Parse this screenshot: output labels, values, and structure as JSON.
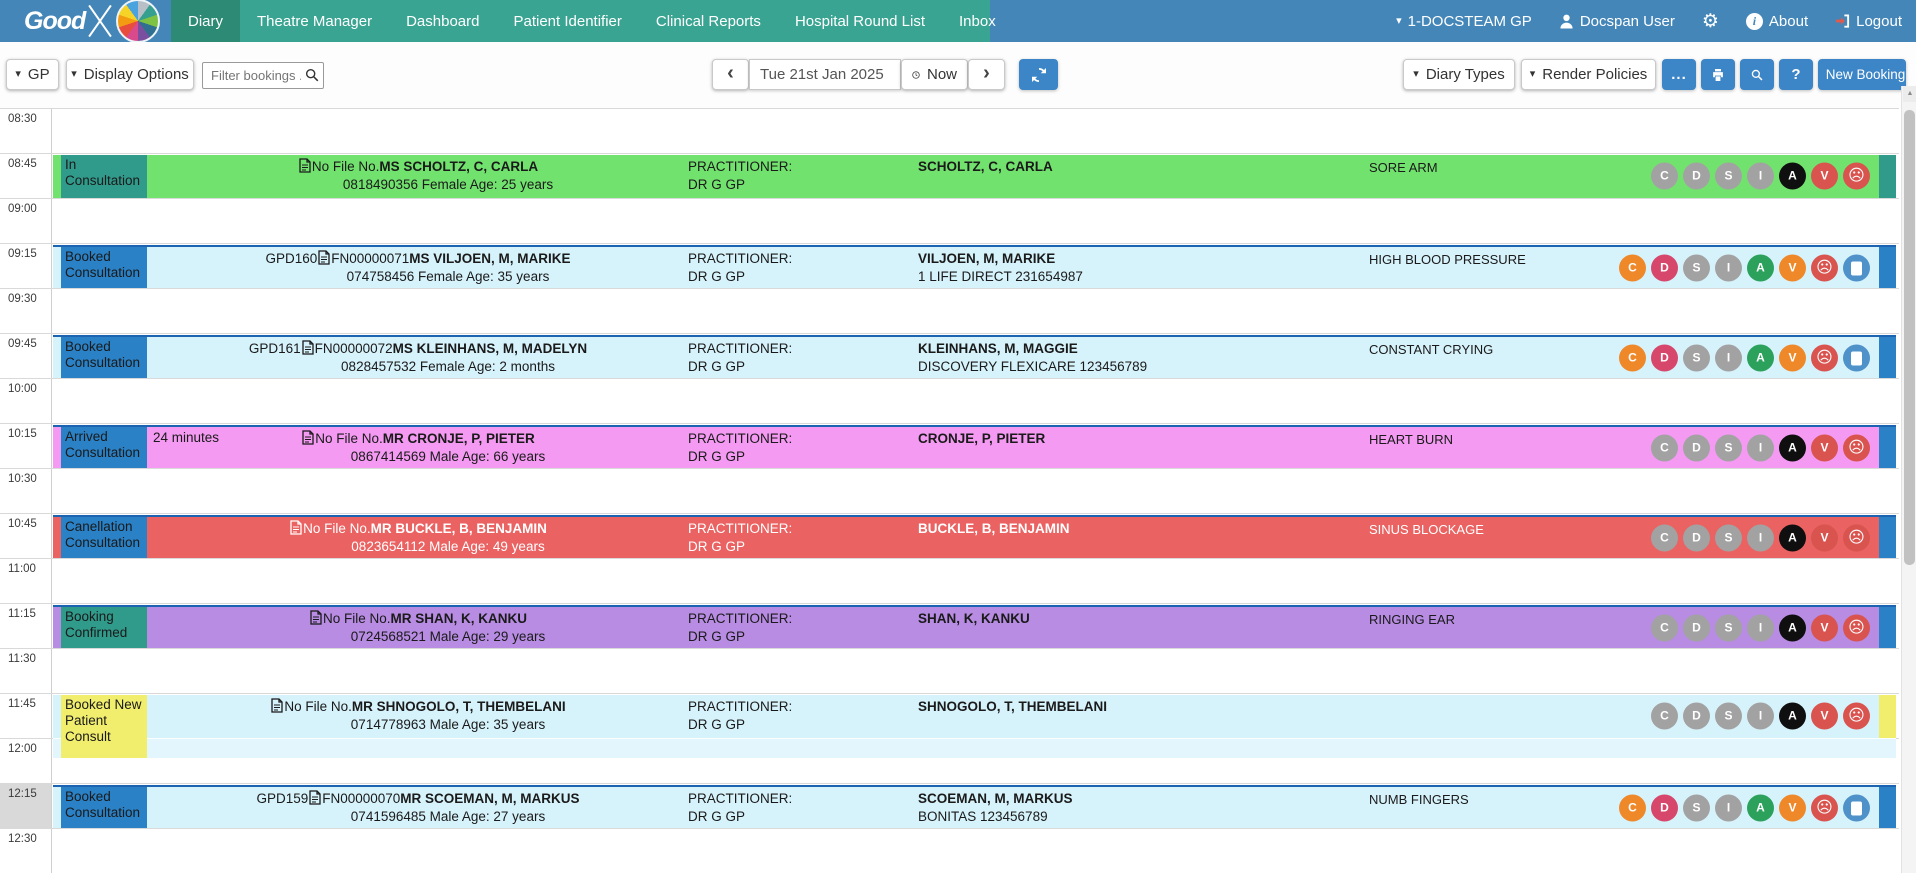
{
  "navbar": {
    "logo_text": "Good",
    "items": [
      {
        "label": "Diary",
        "active": true
      },
      {
        "label": "Theatre Manager",
        "active": false
      },
      {
        "label": "Dashboard",
        "active": false
      },
      {
        "label": "Patient Identifier",
        "active": false
      },
      {
        "label": "Clinical Reports",
        "active": false
      },
      {
        "label": "Hospital Round List",
        "active": false
      },
      {
        "label": "Inbox",
        "active": false
      }
    ],
    "practice": "1-DOCSTEAM GP",
    "user": "Docspan User",
    "about_label": "About",
    "logout_label": "Logout",
    "colors": {
      "bar_blue": "#4486b8",
      "menu_teal": "#3aa492",
      "active_teal": "#2d8a74"
    }
  },
  "toolbar": {
    "gp_label": "GP",
    "display_options_label": "Display Options",
    "filter_placeholder": "Filter bookings ...",
    "date_value": "Tue 21st Jan 2025",
    "now_label": "Now",
    "diary_types_label": "Diary Types",
    "render_policies_label": "Render Policies",
    "more_label": "...",
    "new_booking_label": "New Booking",
    "button_blue": "#3c85c6"
  },
  "diary": {
    "time_slots": [
      {
        "label": "08:30",
        "highlighted": false
      },
      {
        "label": "08:45",
        "highlighted": false
      },
      {
        "label": "09:00",
        "highlighted": false
      },
      {
        "label": "09:15",
        "highlighted": false
      },
      {
        "label": "09:30",
        "highlighted": false
      },
      {
        "label": "09:45",
        "highlighted": false
      },
      {
        "label": "10:00",
        "highlighted": false
      },
      {
        "label": "10:15",
        "highlighted": false
      },
      {
        "label": "10:30",
        "highlighted": false
      },
      {
        "label": "10:45",
        "highlighted": false
      },
      {
        "label": "11:00",
        "highlighted": false
      },
      {
        "label": "11:15",
        "highlighted": false
      },
      {
        "label": "11:30",
        "highlighted": false
      },
      {
        "label": "11:45",
        "highlighted": false
      },
      {
        "label": "12:00",
        "highlighted": false
      },
      {
        "label": "12:15",
        "highlighted": true
      },
      {
        "label": "12:30",
        "highlighted": false
      }
    ],
    "bookings": [
      {
        "time": "08:45",
        "status": "In Consultation",
        "status_bg": "#309a8b",
        "row_bg": "#72e26e",
        "text_color": "#1a1a1a",
        "bar_color": "#309a8b",
        "top_border": "",
        "wait_time": "",
        "file_prefix": "",
        "file_no": "No File No.",
        "patient": "MS SCHOLTZ, C, CARLA",
        "demographics": "0818490356 Female Age: 25 years",
        "practitioner_label": "PRACTITIONER:",
        "practitioner": "DR G GP",
        "account_holder": "SCHOLTZ, C, CARLA",
        "scheme": "",
        "complaint": "SORE ARM",
        "extends_into_next_slot": false,
        "extension_bg": "",
        "badges": [
          {
            "icon": "C",
            "color": "#a2a2a2"
          },
          {
            "icon": "D",
            "color": "#a2a2a2"
          },
          {
            "icon": "S",
            "color": "#a2a2a2"
          },
          {
            "icon": "I",
            "color": "#a2a2a2"
          },
          {
            "icon": "A",
            "color": "#0f0f0f"
          },
          {
            "icon": "V",
            "color": "#d9534f"
          },
          {
            "icon": "sad-face",
            "color": "#d9534f"
          }
        ]
      },
      {
        "time": "09:15",
        "status": "Booked Consultation",
        "status_bg": "#2a81c6",
        "row_bg": "#d6f2fb",
        "text_color": "#1a1a1a",
        "bar_color": "#2a81c6",
        "top_border": "#1c64b2",
        "wait_time": "",
        "file_prefix": "GPD160",
        "file_no": "FN00000071",
        "patient": "MS VILJOEN, M, MARIKE",
        "demographics": "074758456 Female Age: 35 years",
        "practitioner_label": "PRACTITIONER:",
        "practitioner": "DR G GP",
        "account_holder": "VILJOEN, M, MARIKE",
        "scheme": "1 LIFE DIRECT 231654987",
        "complaint": "HIGH BLOOD PRESSURE",
        "extends_into_next_slot": false,
        "extension_bg": "",
        "badges": [
          {
            "icon": "C",
            "color": "#ef8829"
          },
          {
            "icon": "D",
            "color": "#d6476b"
          },
          {
            "icon": "S",
            "color": "#a2a2a2"
          },
          {
            "icon": "I",
            "color": "#a2a2a2"
          },
          {
            "icon": "A",
            "color": "#2ba15c"
          },
          {
            "icon": "V",
            "color": "#ef8829"
          },
          {
            "icon": "sad-face",
            "color": "#d9534f"
          },
          {
            "icon": "note",
            "color": "#4e92c9"
          }
        ]
      },
      {
        "time": "09:45",
        "status": "Booked Consultation",
        "status_bg": "#2a81c6",
        "row_bg": "#d6f2fb",
        "text_color": "#1a1a1a",
        "bar_color": "#2a81c6",
        "top_border": "#1c64b2",
        "wait_time": "",
        "file_prefix": "GPD161",
        "file_no": "FN00000072",
        "patient": "MS KLEINHANS, M, MADELYN",
        "demographics": "0828457532 Female Age: 2 months",
        "practitioner_label": "PRACTITIONER:",
        "practitioner": "DR G GP",
        "account_holder": "KLEINHANS, M, MAGGIE",
        "scheme": "DISCOVERY FLEXICARE 123456789",
        "complaint": "CONSTANT CRYING",
        "extends_into_next_slot": false,
        "extension_bg": "",
        "badges": [
          {
            "icon": "C",
            "color": "#ef8829"
          },
          {
            "icon": "D",
            "color": "#d6476b"
          },
          {
            "icon": "S",
            "color": "#a2a2a2"
          },
          {
            "icon": "I",
            "color": "#a2a2a2"
          },
          {
            "icon": "A",
            "color": "#2ba15c"
          },
          {
            "icon": "V",
            "color": "#ef8829"
          },
          {
            "icon": "sad-face",
            "color": "#d9534f"
          },
          {
            "icon": "note",
            "color": "#4e92c9"
          }
        ]
      },
      {
        "time": "10:15",
        "status": "Arrived Consultation",
        "status_bg": "#2a81c6",
        "row_bg": "#f49af2",
        "text_color": "#1a1a1a",
        "bar_color": "#2a81c6",
        "top_border": "#1c64b2",
        "wait_time": "24 minutes",
        "file_prefix": "",
        "file_no": "No File No.",
        "patient": "MR CRONJE, P, PIETER",
        "demographics": "0867414569 Male Age: 66 years",
        "practitioner_label": "PRACTITIONER:",
        "practitioner": "DR G GP",
        "account_holder": "CRONJE, P, PIETER",
        "scheme": "",
        "complaint": "HEART BURN",
        "extends_into_next_slot": false,
        "extension_bg": "",
        "badges": [
          {
            "icon": "C",
            "color": "#a2a2a2"
          },
          {
            "icon": "D",
            "color": "#a2a2a2"
          },
          {
            "icon": "S",
            "color": "#a2a2a2"
          },
          {
            "icon": "I",
            "color": "#a2a2a2"
          },
          {
            "icon": "A",
            "color": "#0f0f0f"
          },
          {
            "icon": "V",
            "color": "#d9534f"
          },
          {
            "icon": "sad-face",
            "color": "#d9534f"
          }
        ]
      },
      {
        "time": "10:45",
        "status": "Canellation Consultation",
        "status_bg": "#2a81c6",
        "row_bg": "#ea6261",
        "text_color": "#ffffff",
        "bar_color": "#2a81c6",
        "top_border": "#1c64b2",
        "wait_time": "",
        "file_prefix": "",
        "file_no": "No File No.",
        "patient": "MR BUCKLE, B, BENJAMIN",
        "demographics": "0823654112 Male Age: 49 years",
        "practitioner_label": "PRACTITIONER:",
        "practitioner": "DR G GP",
        "account_holder": "BUCKLE, B, BENJAMIN",
        "scheme": "",
        "complaint": "SINUS BLOCKAGE",
        "extends_into_next_slot": false,
        "extension_bg": "",
        "badges": [
          {
            "icon": "C",
            "color": "#a2a2a2"
          },
          {
            "icon": "D",
            "color": "#a2a2a2"
          },
          {
            "icon": "S",
            "color": "#a2a2a2"
          },
          {
            "icon": "I",
            "color": "#a2a2a2"
          },
          {
            "icon": "A",
            "color": "#0f0f0f"
          },
          {
            "icon": "V",
            "color": "#d9534f"
          },
          {
            "icon": "sad-face",
            "color": "#d9534f"
          }
        ]
      },
      {
        "time": "11:15",
        "status": "Booking Confirmed",
        "status_bg": "#309a8b",
        "row_bg": "#b78ce2",
        "text_color": "#1a1a1a",
        "bar_color": "#2a81c6",
        "top_border": "#1c64b2",
        "wait_time": "",
        "file_prefix": "",
        "file_no": "No File No.",
        "patient": "MR SHAN, K, KANKU",
        "demographics": "0724568521 Male Age: 29 years",
        "practitioner_label": "PRACTITIONER:",
        "practitioner": "DR G GP",
        "account_holder": "SHAN, K, KANKU",
        "scheme": "",
        "complaint": "RINGING EAR",
        "extends_into_next_slot": false,
        "extension_bg": "",
        "badges": [
          {
            "icon": "C",
            "color": "#a2a2a2"
          },
          {
            "icon": "D",
            "color": "#a2a2a2"
          },
          {
            "icon": "S",
            "color": "#a2a2a2"
          },
          {
            "icon": "I",
            "color": "#a2a2a2"
          },
          {
            "icon": "A",
            "color": "#0f0f0f"
          },
          {
            "icon": "V",
            "color": "#d9534f"
          },
          {
            "icon": "sad-face",
            "color": "#d9534f"
          }
        ]
      },
      {
        "time": "11:45",
        "status": "Booked New Patient Consult",
        "status_bg": "#f1ee6e",
        "row_bg": "#d6f2fb",
        "text_color": "#1a1a1a",
        "bar_color": "#f1ee6e",
        "top_border": "",
        "wait_time": "",
        "file_prefix": "",
        "file_no": "No File No.",
        "patient": "MR SHNOGOLO, T, THEMBELANI",
        "demographics": "0714778963 Male Age: 35 years",
        "practitioner_label": "PRACTITIONER:",
        "practitioner": "DR G GP",
        "account_holder": "SHNOGOLO, T, THEMBELANI",
        "scheme": "",
        "complaint": "",
        "extends_into_next_slot": true,
        "extension_bg": "#e3f6fd",
        "badges": [
          {
            "icon": "C",
            "color": "#a2a2a2"
          },
          {
            "icon": "D",
            "color": "#a2a2a2"
          },
          {
            "icon": "S",
            "color": "#a2a2a2"
          },
          {
            "icon": "I",
            "color": "#a2a2a2"
          },
          {
            "icon": "A",
            "color": "#0f0f0f"
          },
          {
            "icon": "V",
            "color": "#d9534f"
          },
          {
            "icon": "sad-face",
            "color": "#d9534f"
          }
        ]
      },
      {
        "time": "12:15",
        "status": "Booked Consultation",
        "status_bg": "#2a81c6",
        "row_bg": "#d6f2fb",
        "text_color": "#1a1a1a",
        "bar_color": "#2a81c6",
        "top_border": "#1c64b2",
        "wait_time": "",
        "file_prefix": "GPD159",
        "file_no": "FN00000070",
        "patient": "MR SCOEMAN, M, MARKUS",
        "demographics": "0741596485 Male Age: 27 years",
        "practitioner_label": "PRACTITIONER:",
        "practitioner": "DR G GP",
        "account_holder": "SCOEMAN, M, MARKUS",
        "scheme": "BONITAS 123456789",
        "complaint": "NUMB FINGERS",
        "extends_into_next_slot": false,
        "extension_bg": "",
        "badges": [
          {
            "icon": "C",
            "color": "#ef8829"
          },
          {
            "icon": "D",
            "color": "#d6476b"
          },
          {
            "icon": "S",
            "color": "#a2a2a2"
          },
          {
            "icon": "I",
            "color": "#a2a2a2"
          },
          {
            "icon": "A",
            "color": "#2ba15c"
          },
          {
            "icon": "V",
            "color": "#ef8829"
          },
          {
            "icon": "sad-face",
            "color": "#d9534f"
          },
          {
            "icon": "note",
            "color": "#4e92c9"
          }
        ]
      }
    ]
  }
}
